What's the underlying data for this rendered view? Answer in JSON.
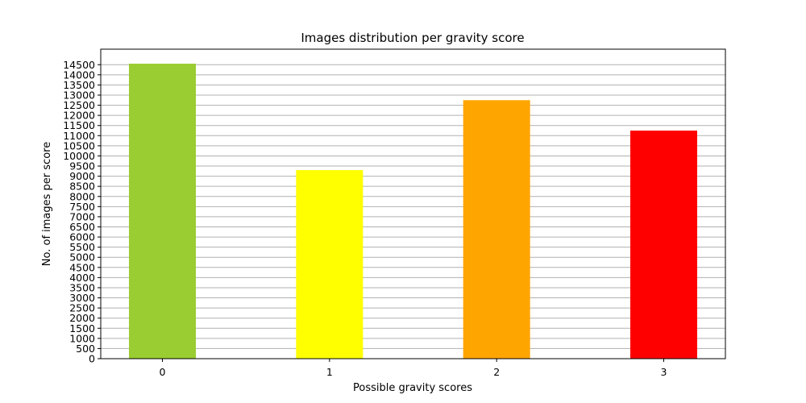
{
  "chart_data": {
    "type": "bar",
    "title": "Images distribution per gravity score",
    "xlabel": "Possible gravity scores",
    "ylabel": "No. of images per score",
    "categories": [
      "0",
      "1",
      "2",
      "3"
    ],
    "values": [
      14550,
      9300,
      12750,
      11250
    ],
    "colors": [
      "#9acd32",
      "#ffff00",
      "#ffa500",
      "#ff0000"
    ],
    "ylim": [
      0,
      14550
    ],
    "yticks": [
      0,
      500,
      1000,
      1500,
      2000,
      2500,
      3000,
      3500,
      4000,
      4500,
      5000,
      5500,
      6000,
      6500,
      7000,
      7500,
      8000,
      8500,
      9000,
      9500,
      10000,
      10500,
      11000,
      11500,
      12000,
      12500,
      13000,
      13500,
      14000,
      14500
    ],
    "grid": "y",
    "legend": "none"
  }
}
